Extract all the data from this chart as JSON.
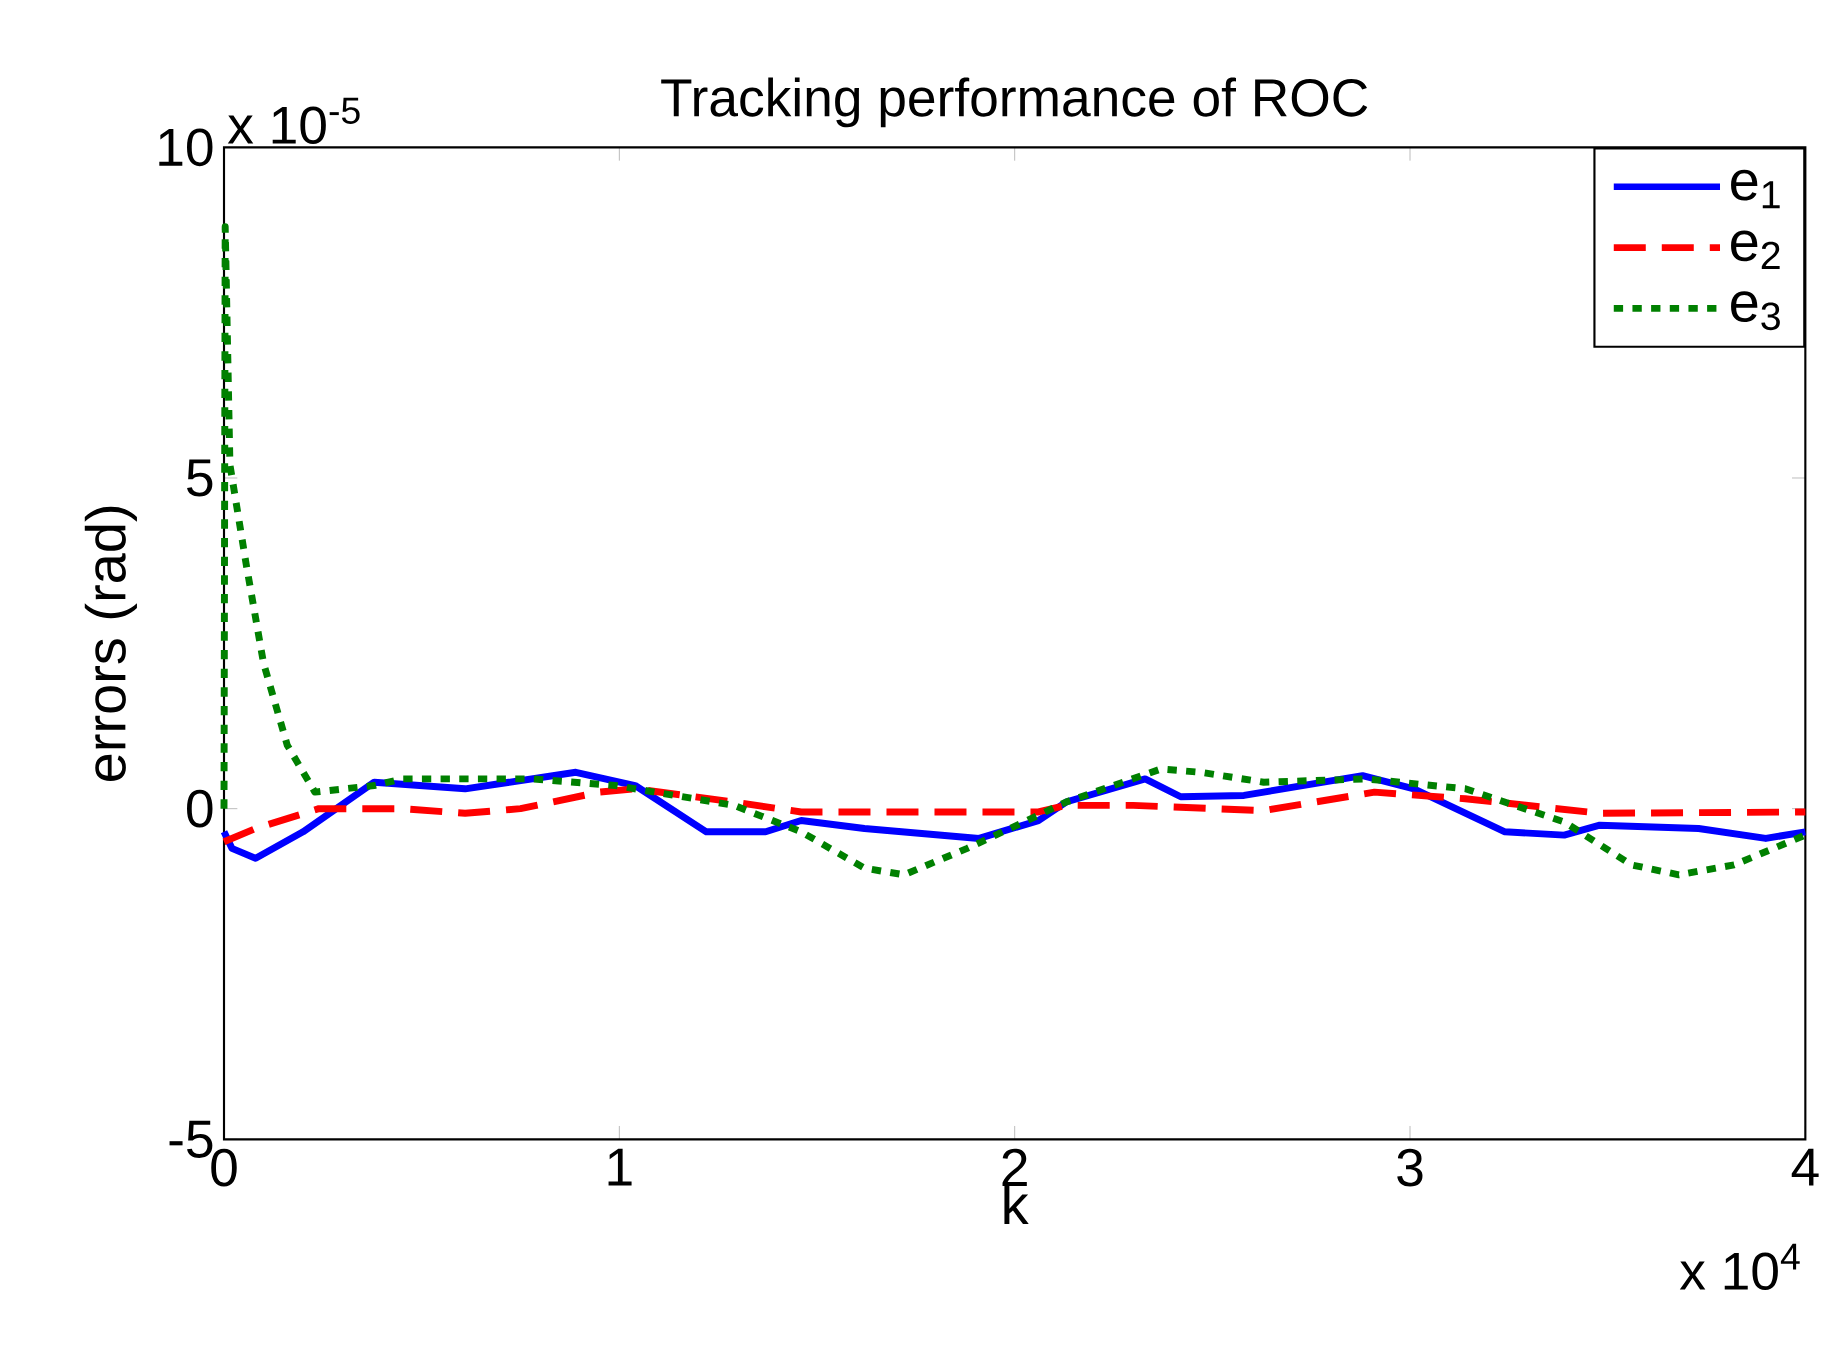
{
  "chart_data": {
    "type": "line",
    "title": "Tracking performance of ROC",
    "xlabel": "k",
    "ylabel": "errors (rad)",
    "annotations": [
      "x 10$^{-5}$",
      "x 10$^{4}$"
    ],
    "xlim": [
      0,
      4
    ],
    "ylim": [
      -5,
      10
    ],
    "xticks": [
      0,
      1,
      2,
      3,
      4
    ],
    "yticks": [
      -5,
      0,
      5,
      10
    ],
    "legend": "top right",
    "grid": false,
    "series": [
      {
        "name": "e$_{1}$",
        "color": "#0000ff",
        "line_style": "solid",
        "x": [
          0,
          0.02,
          0.08,
          0.2,
          0.38,
          0.61,
          0.89,
          1.04,
          1.22,
          1.37,
          1.46,
          1.62,
          1.91,
          2.06,
          2.13,
          2.33,
          2.42,
          2.58,
          2.88,
          3.01,
          3.24,
          3.39,
          3.48,
          3.73,
          3.9,
          4.0
        ],
        "values": [
          -0.35,
          -0.6,
          -0.75,
          -0.35,
          0.4,
          0.3,
          0.55,
          0.35,
          -0.35,
          -0.35,
          -0.18,
          -0.3,
          -0.45,
          -0.18,
          0.1,
          0.45,
          0.18,
          0.2,
          0.5,
          0.3,
          -0.35,
          -0.4,
          -0.25,
          -0.3,
          -0.45,
          -0.35
        ]
      },
      {
        "name": "e$_{2}$",
        "color": "#ff0000",
        "line_style": "dashed",
        "x": [
          0,
          0.08,
          0.24,
          0.45,
          0.61,
          0.75,
          0.95,
          1.04,
          1.29,
          1.46,
          2.06,
          2.13,
          2.3,
          2.63,
          2.91,
          3.14,
          3.48,
          4.0
        ],
        "values": [
          -0.5,
          -0.3,
          0,
          0,
          -0.07,
          0,
          0.25,
          0.3,
          0.1,
          -0.05,
          -0.05,
          0.05,
          0.05,
          -0.03,
          0.25,
          0.15,
          -0.07,
          -0.05
        ]
      },
      {
        "name": "e$_{3}$",
        "color": "#008000",
        "line_style": "dotted",
        "x": [
          0,
          0.003,
          0.015,
          0.056,
          0.1,
          0.16,
          0.23,
          0.38,
          0.45,
          0.78,
          0.99,
          1.29,
          1.46,
          1.62,
          1.72,
          1.88,
          2.06,
          2.13,
          2.37,
          2.47,
          2.63,
          2.89,
          3.14,
          3.39,
          3.56,
          3.68,
          3.82,
          4.0
        ],
        "values": [
          0,
          8.8,
          5.2,
          3.7,
          2.2,
          0.96,
          0.25,
          0.35,
          0.45,
          0.45,
          0.35,
          0.05,
          -0.35,
          -0.9,
          -1,
          -0.6,
          -0.1,
          0.1,
          0.6,
          0.55,
          0.4,
          0.45,
          0.3,
          -0.2,
          -0.85,
          -1,
          -0.85,
          -0.4
        ]
      }
    ]
  }
}
